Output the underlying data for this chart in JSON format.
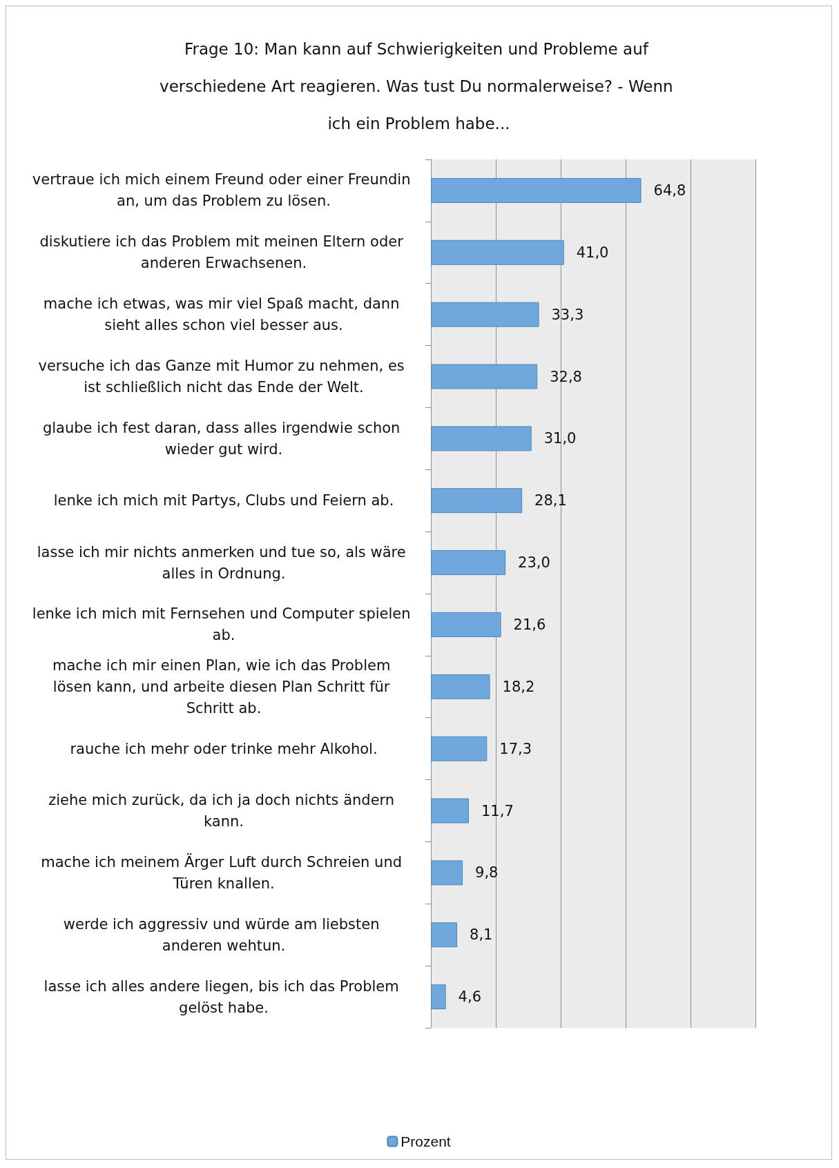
{
  "chart_data": {
    "type": "bar",
    "orientation": "horizontal",
    "title": "Frage 10: Man kann auf Schwierigkeiten und Probleme auf verschiedene Art reagieren. Was tust Du normalerweise? - Wenn ich ein Problem habe...",
    "categories": [
      "vertraue ich mich einem Freund oder einer Freundin an, um das Problem zu lösen.",
      "diskutiere ich das Problem mit meinen Eltern oder anderen Erwachsenen.",
      "mache ich etwas, was mir viel Spaß macht, dann sieht alles schon viel besser aus.",
      "versuche ich das Ganze mit Humor zu nehmen, es ist schließlich nicht das Ende der Welt.",
      "glaube ich fest daran, dass alles irgendwie schon wieder gut wird.",
      "lenke ich mich mit Partys, Clubs und Feiern ab.",
      "lasse ich mir nichts anmerken und tue so, als wäre alles in Ordnung.",
      "lenke ich mich mit Fernsehen und Computer spielen ab.",
      "mache ich mir einen Plan, wie ich das Problem lösen kann, und arbeite diesen Plan Schritt für Schritt ab.",
      "rauche ich mehr oder trinke mehr Alkohol.",
      "ziehe mich zurück, da ich ja doch nichts ändern kann.",
      "mache ich meinem Ärger Luft durch Schreien und Türen knallen.",
      "werde ich aggressiv und würde am liebsten anderen wehtun.",
      "lasse ich alles andere liegen, bis ich das Problem gelöst habe."
    ],
    "series": [
      {
        "name": "Prozent",
        "color": "#6fa8dc",
        "values": [
          64.8,
          41.0,
          33.3,
          32.8,
          31.0,
          28.1,
          23.0,
          21.6,
          18.2,
          17.3,
          11.7,
          9.8,
          8.1,
          4.6
        ],
        "value_labels": [
          "64,8",
          "41,0",
          "33,3",
          "32,8",
          "31,0",
          "28,1",
          "23,0",
          "21,6",
          "18,2",
          "17,3",
          "11,7",
          "9,8",
          "8,1",
          "4,6"
        ]
      }
    ],
    "xlim": [
      0,
      100
    ],
    "xticks": [
      {
        "value": 0,
        "label": null
      },
      {
        "value": 20,
        "label": null
      },
      {
        "value": 40,
        "label": null
      },
      {
        "value": 60,
        "label": null
      },
      {
        "value": 80,
        "label": null
      },
      {
        "value": 100,
        "label": null
      }
    ],
    "tick_labels": "y",
    "grid": "x",
    "legend": "bottom"
  }
}
